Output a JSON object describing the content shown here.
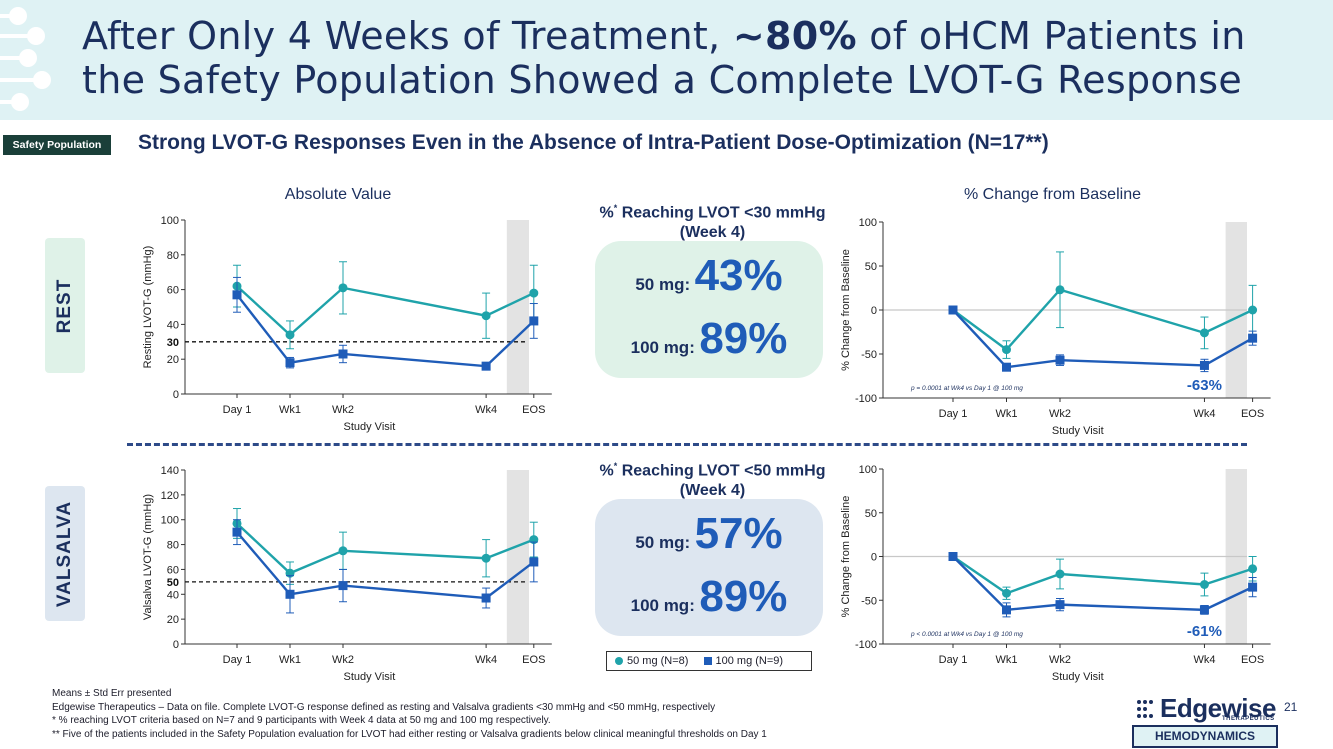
{
  "slide": {
    "title_part1": "After Only 4 Weeks of Treatment, ",
    "title_bold": "~80%",
    "title_part2": " of oHCM Patients in",
    "title_line2": "the Safety Population Showed a Complete LVOT-G Response",
    "badge": "Safety Population",
    "subtitle": "Strong LVOT-G Responses Even in the Absence of Intra-Patient Dose-Optimization (N=17**)",
    "rest_label": "REST",
    "valsalva_label": "VALSALVA",
    "abs_title": "Absolute Value",
    "pct_title": "% Change from Baseline",
    "page_number": "21",
    "section_tag": "HEMODYNAMICS",
    "logo_text": "Edgewise",
    "logo_sub": "THERAPEUTICS"
  },
  "center": {
    "rest_head_pre": "%",
    "rest_head_sup": "*",
    "rest_head_post": " Reaching LVOT <30 mmHg",
    "rest_head_line2": "(Week 4)",
    "rest_50_label": "50 mg:",
    "rest_50_value": "43%",
    "rest_100_label": "100 mg:",
    "rest_100_value": "89%",
    "val_head_pre": "%",
    "val_head_sup": "*",
    "val_head_post": " Reaching LVOT <50 mmHg",
    "val_head_line2": "(Week 4)",
    "val_50_label": "50 mg:",
    "val_50_value": "57%",
    "val_100_label": "100 mg:",
    "val_100_value": "89%",
    "legend_50": "50 mg (N=8)",
    "legend_100": "100 mg (N=9)"
  },
  "footnotes": {
    "line1": "Means ± Std Err presented",
    "line2": "Edgewise Therapeutics – Data on file. Complete LVOT-G response defined as resting and Valsalva gradients <30 mmHg and <50 mmHg, respectively",
    "line3": "* % reaching LVOT criteria based on N=7 and 9 participants with Week 4 data at 50 mg and 100 mg respectively.",
    "line4": "** Five of the patients included in the Safety Population evaluation for LVOT had either resting or Valsalva gradients below clinical meaningful thresholds on Day 1"
  },
  "colors": {
    "teal": "#1fa3aa",
    "blue": "#1f5cb8",
    "navy": "#1b2f5e"
  },
  "chart_data": [
    {
      "id": "rest-abs",
      "type": "line",
      "title": "Absolute Value",
      "ylabel": "Resting LVOT-G (mmHg)",
      "xlabel": "Study Visit",
      "categories": [
        "Day 1",
        "Wk1",
        "Wk2",
        "Wk4",
        "EOS"
      ],
      "x": [
        0,
        1,
        2,
        4.7,
        5.6
      ],
      "ylim": [
        0,
        100
      ],
      "yticks": [
        0,
        20,
        40,
        60,
        80,
        100
      ],
      "threshold": 30,
      "threshold_label": "30",
      "shaded_category": "EOS",
      "series": [
        {
          "name": "50 mg (N=8)",
          "values": [
            62,
            34,
            61,
            45,
            58
          ],
          "err": [
            12,
            8,
            15,
            13,
            16
          ]
        },
        {
          "name": "100 mg (N=9)",
          "values": [
            57,
            18,
            23,
            16,
            42
          ],
          "err": [
            10,
            3,
            5,
            2,
            10
          ]
        }
      ]
    },
    {
      "id": "rest-pct",
      "type": "line",
      "title": "% Change from Baseline",
      "ylabel": "% Change from Baseline",
      "xlabel": "Study Visit",
      "categories": [
        "Day 1",
        "Wk1",
        "Wk2",
        "Wk4",
        "EOS"
      ],
      "x": [
        0,
        1,
        2,
        4.7,
        5.6
      ],
      "ylim": [
        -100,
        100
      ],
      "yticks": [
        -100,
        -50,
        0,
        50,
        100
      ],
      "zero_line": true,
      "shaded_category": "EOS",
      "annotation": "p = 0.0001 at Wk4 vs Day 1 @ 100 mg",
      "callout": "-63%",
      "series": [
        {
          "name": "50 mg (N=8)",
          "values": [
            0,
            -45,
            23,
            -26,
            0
          ],
          "err": [
            0,
            10,
            43,
            18,
            28
          ]
        },
        {
          "name": "100 mg (N=9)",
          "values": [
            0,
            -65,
            -57,
            -63,
            -32
          ],
          "err": [
            0,
            4,
            6,
            7,
            8
          ]
        }
      ]
    },
    {
      "id": "val-abs",
      "type": "line",
      "title": "",
      "ylabel": "Valsalva LVOT-G (mmHg)",
      "xlabel": "Study Visit",
      "categories": [
        "Day 1",
        "Wk1",
        "Wk2",
        "Wk4",
        "EOS"
      ],
      "x": [
        0,
        1,
        2,
        4.7,
        5.6
      ],
      "ylim": [
        0,
        140
      ],
      "yticks": [
        0,
        20,
        40,
        60,
        80,
        100,
        120,
        140
      ],
      "threshold": 50,
      "threshold_label": "50",
      "shaded_category": "EOS",
      "series": [
        {
          "name": "50 mg (N=8)",
          "values": [
            97,
            57,
            75,
            69,
            84
          ],
          "err": [
            12,
            9,
            15,
            15,
            14
          ]
        },
        {
          "name": "100 mg (N=9)",
          "values": [
            90,
            40,
            47,
            37,
            66
          ],
          "err": [
            10,
            15,
            13,
            8,
            16
          ]
        }
      ]
    },
    {
      "id": "val-pct",
      "type": "line",
      "title": "",
      "ylabel": "% Change from Baseline",
      "xlabel": "Study Visit",
      "categories": [
        "Day 1",
        "Wk1",
        "Wk2",
        "Wk4",
        "EOS"
      ],
      "x": [
        0,
        1,
        2,
        4.7,
        5.6
      ],
      "ylim": [
        -100,
        100
      ],
      "yticks": [
        -100,
        -50,
        0,
        50,
        100
      ],
      "zero_line": true,
      "shaded_category": "EOS",
      "annotation": "p < 0.0001 at Wk4 vs Day 1 @ 100 mg",
      "callout": "-61%",
      "series": [
        {
          "name": "50 mg (N=8)",
          "values": [
            0,
            -42,
            -20,
            -32,
            -14
          ],
          "err": [
            0,
            7,
            17,
            13,
            14
          ]
        },
        {
          "name": "100 mg (N=9)",
          "values": [
            0,
            -61,
            -55,
            -61,
            -35
          ],
          "err": [
            0,
            8,
            7,
            5,
            11
          ]
        }
      ]
    }
  ]
}
